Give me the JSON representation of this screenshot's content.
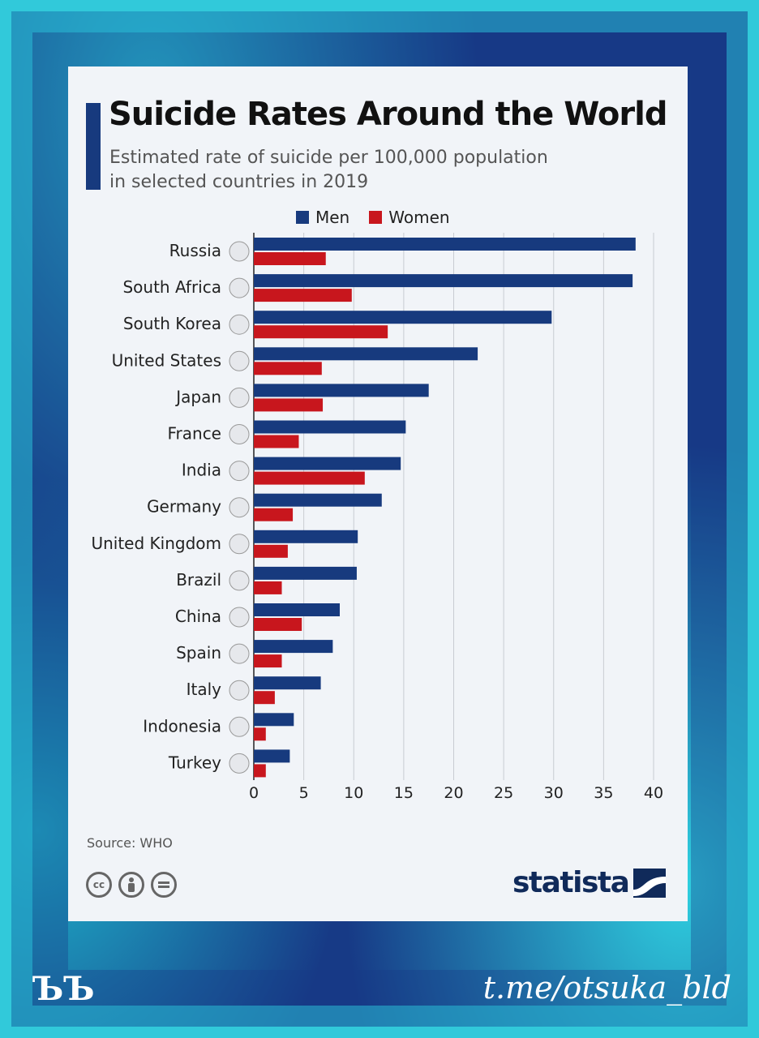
{
  "title": "Suicide Rates Around the World",
  "subtitle_line1": "Estimated rate of suicide per 100,000 population",
  "subtitle_line2": "in selected countries in 2019",
  "legend": {
    "men": "Men",
    "women": "Women"
  },
  "source": "Source: WHO",
  "brand": "statista",
  "watermark_logo": "ЪЪ",
  "watermark_handle": "t.me/otsuka_bld",
  "license_icons": [
    "cc-icon",
    "attribution-icon",
    "no-derivatives-icon"
  ],
  "colors": {
    "men": "#173a7e",
    "women": "#c8161d",
    "background": "#f1f4f8",
    "frame": "#173a86",
    "frame_accent": "#31c9da"
  },
  "chart_data": {
    "type": "bar",
    "orientation": "horizontal",
    "categories": [
      "Russia",
      "South Africa",
      "South Korea",
      "United States",
      "Japan",
      "France",
      "India",
      "Germany",
      "United Kingdom",
      "Brazil",
      "China",
      "Spain",
      "Italy",
      "Indonesia",
      "Turkey"
    ],
    "series": [
      {
        "name": "Men",
        "values": [
          38.2,
          37.9,
          29.8,
          22.4,
          17.5,
          15.2,
          14.7,
          12.8,
          10.4,
          10.3,
          8.6,
          7.9,
          6.7,
          4.0,
          3.6
        ]
      },
      {
        "name": "Women",
        "values": [
          7.2,
          9.8,
          13.4,
          6.8,
          6.9,
          4.5,
          11.1,
          3.9,
          3.4,
          2.8,
          4.8,
          2.8,
          2.1,
          1.2,
          1.2
        ]
      }
    ],
    "xlim": [
      0,
      40
    ],
    "xticks": [
      "0",
      "5",
      "10",
      "15",
      "20",
      "25",
      "30",
      "35",
      "40"
    ],
    "grid": true,
    "legend_position": "top"
  }
}
